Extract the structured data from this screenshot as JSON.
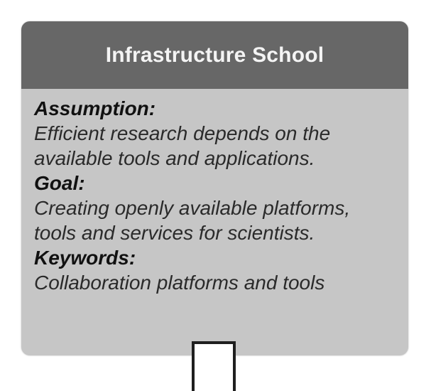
{
  "card": {
    "title": "Infrastructure School",
    "sections": [
      {
        "heading": "Assumption:",
        "text": "Efficient research depends on the available tools and applications."
      },
      {
        "heading": "Goal:",
        "text": "Creating openly available platforms, tools and services for scientists."
      },
      {
        "heading": "Keywords:",
        "text": "Collaboration platforms and tools"
      }
    ]
  },
  "colors": {
    "header_bg": "#676767",
    "body_bg": "#c6c6c6",
    "title_text": "#f4f4f4"
  }
}
